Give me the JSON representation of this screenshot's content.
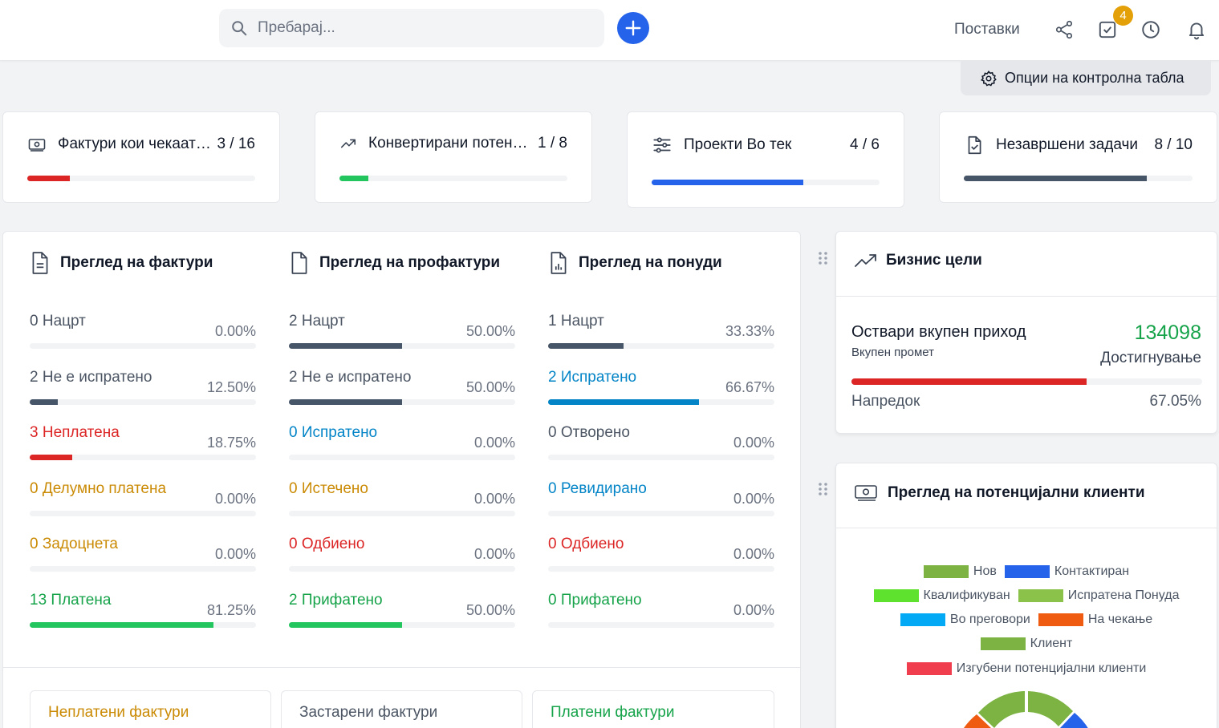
{
  "topbar": {
    "search_placeholder": "Пребарај...",
    "settings_label": "Поставки",
    "tasks_badge": "4",
    "dashboard_options_label": "Опции на контролна табла"
  },
  "stats": [
    {
      "label": "Фактури кои чекаат плаќање",
      "count": "3 / 16",
      "progress": 0.1875,
      "color": "#dc2626"
    },
    {
      "label": "Конвертирани потенцијални клиенти",
      "count": "1 / 8",
      "progress": 0.125,
      "color": "#22c55e"
    },
    {
      "label": "Проекти Во тек",
      "count": "4 / 6",
      "progress": 0.6667,
      "color": "#2563eb"
    },
    {
      "label": "Незавршени задачи",
      "count": "8 / 10",
      "progress": 0.8,
      "color": "#475569"
    }
  ],
  "invoices": {
    "title": "Преглед на фактури",
    "rows": [
      {
        "label": "0 Нацрт",
        "pct": "0.00%",
        "value": 0,
        "color": "#4b5563",
        "bar": "#475569"
      },
      {
        "label": "2 Не е испратено",
        "pct": "12.50%",
        "value": 0.125,
        "color": "#4b5563",
        "bar": "#475569"
      },
      {
        "label": "3 Неплатена",
        "pct": "18.75%",
        "value": 0.1875,
        "color": "#dc2626",
        "bar": "#dc2626"
      },
      {
        "label": "0 Делумно платена",
        "pct": "0.00%",
        "value": 0,
        "color": "#ca8a04",
        "bar": "#ca8a04"
      },
      {
        "label": "0 Задоцнета",
        "pct": "0.00%",
        "value": 0,
        "color": "#ca8a04",
        "bar": "#ca8a04"
      },
      {
        "label": "13 Платена",
        "pct": "81.25%",
        "value": 0.8125,
        "color": "#16a34a",
        "bar": "#22c55e"
      }
    ]
  },
  "proformas": {
    "title": "Преглед на профактури",
    "rows": [
      {
        "label": "2 Нацрт",
        "pct": "50.00%",
        "value": 0.5,
        "color": "#4b5563",
        "bar": "#475569"
      },
      {
        "label": "2 Не е испратено",
        "pct": "50.00%",
        "value": 0.5,
        "color": "#4b5563",
        "bar": "#475569"
      },
      {
        "label": "0 Испратено",
        "pct": "0.00%",
        "value": 0,
        "color": "#0284c7",
        "bar": "#0284c7"
      },
      {
        "label": "0 Истечено",
        "pct": "0.00%",
        "value": 0,
        "color": "#ca8a04",
        "bar": "#ca8a04"
      },
      {
        "label": "0 Одбиено",
        "pct": "0.00%",
        "value": 0,
        "color": "#dc2626",
        "bar": "#dc2626"
      },
      {
        "label": "2 Прифатено",
        "pct": "50.00%",
        "value": 0.5,
        "color": "#16a34a",
        "bar": "#22c55e"
      }
    ]
  },
  "estimates": {
    "title": "Преглед на понуди",
    "rows": [
      {
        "label": "1 Нацрт",
        "pct": "33.33%",
        "value": 0.3333,
        "color": "#4b5563",
        "bar": "#475569"
      },
      {
        "label": "2 Испратено",
        "pct": "66.67%",
        "value": 0.6667,
        "color": "#0284c7",
        "bar": "#0284c7"
      },
      {
        "label": "0 Отворено",
        "pct": "0.00%",
        "value": 0,
        "color": "#4b5563",
        "bar": "#475569"
      },
      {
        "label": "0 Ревидирано",
        "pct": "0.00%",
        "value": 0,
        "color": "#0284c7",
        "bar": "#0284c7"
      },
      {
        "label": "0 Одбиено",
        "pct": "0.00%",
        "value": 0,
        "color": "#dc2626",
        "bar": "#dc2626"
      },
      {
        "label": "0 Прифатено",
        "pct": "0.00%",
        "value": 0,
        "color": "#16a34a",
        "bar": "#22c55e"
      }
    ]
  },
  "sub_cards": [
    {
      "label": "Неплатени фактури",
      "color": "#ca8a04"
    },
    {
      "label": "Застарени фактури",
      "color": "#4b5563"
    },
    {
      "label": "Платени фактури",
      "color": "#16a34a"
    }
  ],
  "goals": {
    "title": "Бизнис цели",
    "goal_title": "Оствари вкупен приход",
    "goal_subtitle": "Вкупен промет",
    "value": "134098",
    "achievement_label": "Достигнување",
    "progress_label": "Напредок",
    "progress_pct": "67.05%",
    "progress": 0.6705
  },
  "leads": {
    "title": "Преглед на потенцијални клиенти",
    "legend": [
      {
        "name": "Нов",
        "color": "#7cb342"
      },
      {
        "name": "Контактиран",
        "color": "#2563eb"
      },
      {
        "name": "Квалификуван",
        "color": "#5ee22e"
      },
      {
        "name": "Испратена Понуда",
        "color": "#8bc34a"
      },
      {
        "name": "Во преговори",
        "color": "#03a9f4"
      },
      {
        "name": "На чекање",
        "color": "#ef5c11"
      },
      {
        "name": "Клиент",
        "color": "#7cb342"
      },
      {
        "name": "Изгубени потенцијални клиенти",
        "color": "#f03e4e"
      }
    ]
  }
}
